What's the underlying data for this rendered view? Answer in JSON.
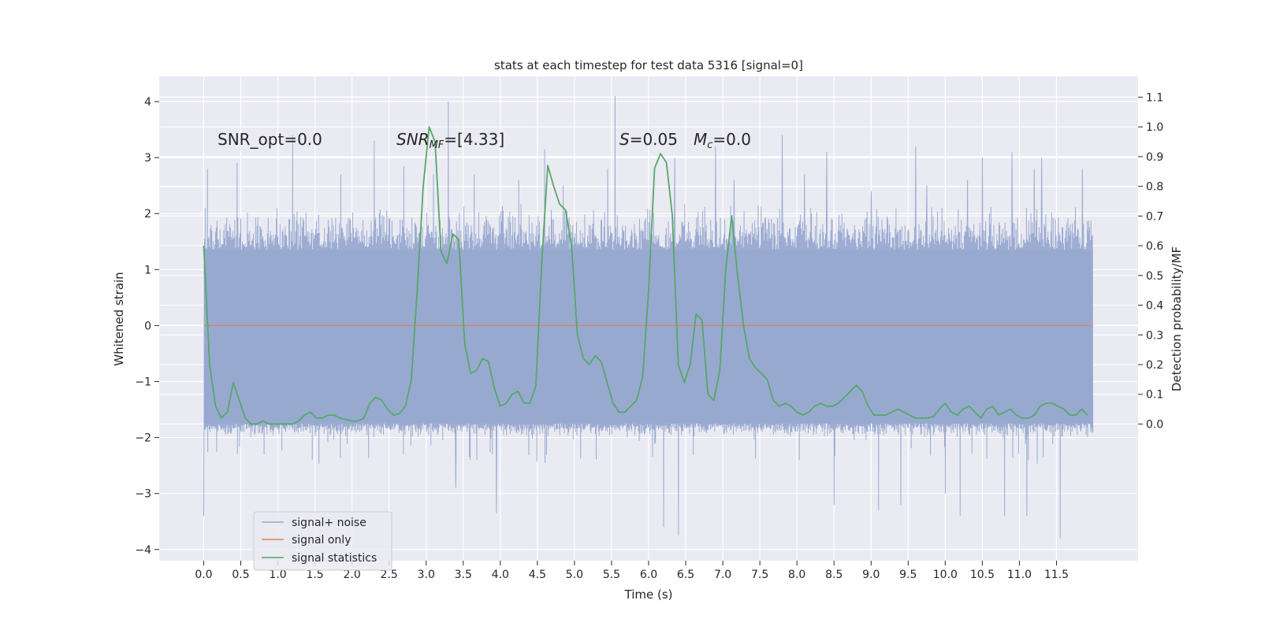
{
  "chart_data": {
    "type": "line",
    "title": "stats at each timestep for test data 5316 [signal=0]",
    "xlabel": "Time (s)",
    "ylabel": "Whitened strain",
    "y2label": "Detection probability/MF",
    "xlim": [
      -0.6,
      12.6
    ],
    "ylim": [
      -4.2,
      4.45
    ],
    "y2lim": [
      -0.46,
      1.17
    ],
    "x_ticks": [
      0.0,
      0.5,
      1.0,
      1.5,
      2.0,
      2.5,
      3.0,
      3.5,
      4.0,
      4.5,
      5.0,
      5.5,
      6.0,
      6.5,
      7.0,
      7.5,
      8.0,
      8.5,
      9.0,
      9.5,
      10.0,
      10.5,
      11.0,
      11.5
    ],
    "x_tick_labels": [
      "0.0",
      "0.5",
      "1.0",
      "1.5",
      "2.0",
      "2.5",
      "3.0",
      "3.5",
      "4.0",
      "4.5",
      "5.0",
      "5.5",
      "6.0",
      "6.5",
      "7.0",
      "7.5",
      "8.0",
      "8.5",
      "9.0",
      "9.5",
      "10.0",
      "10.5",
      "11.0",
      "11.5"
    ],
    "y_ticks": [
      4,
      3,
      2,
      1,
      0,
      -1,
      -2,
      -3,
      -4
    ],
    "y_tick_labels": [
      "4",
      "3",
      "2",
      "1",
      "0",
      "−1",
      "−2",
      "−3",
      "−4"
    ],
    "y2_ticks": [
      1.1,
      1.0,
      0.9,
      0.8,
      0.7,
      0.6,
      0.5,
      0.4,
      0.3,
      0.2,
      0.1,
      0.0
    ],
    "y2_tick_labels": [
      "1.1",
      "1.0",
      "0.9",
      "0.8",
      "0.7",
      "0.6",
      "0.5",
      "0.4",
      "0.3",
      "0.2",
      "0.1",
      "0.0"
    ],
    "grid": true,
    "legend_position": "lower-left",
    "annotations": {
      "snr_opt": "SNR_opt=0.0",
      "snr_mf_base": "SNR",
      "snr_mf_sub": "MF",
      "snr_mf_val": "=[4.33]",
      "s_base": "S",
      "s_val": "=0.05",
      "mc_base": "M",
      "mc_sub": "c",
      "mc_val": "=0.0"
    },
    "series": [
      {
        "name": "signal+ noise",
        "color": "#98a9d0",
        "axis": "left",
        "x_range": [
          0.0,
          11.99
        ],
        "band_core": [
          -1.75,
          1.35
        ],
        "typical_peak_range": [
          -2.0,
          2.2
        ],
        "notable_peaks": [
          [
            0.0,
            -3.4
          ],
          [
            0.05,
            2.8
          ],
          [
            0.45,
            2.9
          ],
          [
            1.2,
            3.4
          ],
          [
            1.85,
            2.7
          ],
          [
            2.3,
            3.3
          ],
          [
            2.7,
            2.85
          ],
          [
            3.1,
            2.7
          ],
          [
            3.3,
            4.0
          ],
          [
            3.4,
            -2.9
          ],
          [
            3.65,
            2.7
          ],
          [
            3.95,
            -3.35
          ],
          [
            4.25,
            2.6
          ],
          [
            4.6,
            3.15
          ],
          [
            4.85,
            2.5
          ],
          [
            5.45,
            2.8
          ],
          [
            5.55,
            4.1
          ],
          [
            6.2,
            -3.6
          ],
          [
            6.35,
            3.0
          ],
          [
            6.4,
            -3.75
          ],
          [
            6.9,
            3.2
          ],
          [
            7.15,
            2.6
          ],
          [
            7.8,
            3.4
          ],
          [
            8.1,
            2.7
          ],
          [
            8.4,
            3.1
          ],
          [
            8.5,
            -3.2
          ],
          [
            9.0,
            2.4
          ],
          [
            9.1,
            -3.3
          ],
          [
            9.4,
            -3.2
          ],
          [
            9.6,
            3.2
          ],
          [
            9.75,
            2.5
          ],
          [
            10.0,
            -3.0
          ],
          [
            10.2,
            -3.4
          ],
          [
            10.3,
            2.6
          ],
          [
            10.5,
            3.0
          ],
          [
            10.8,
            -3.4
          ],
          [
            10.9,
            3.1
          ],
          [
            11.1,
            -3.4
          ],
          [
            11.2,
            2.8
          ],
          [
            11.3,
            3.0
          ],
          [
            11.55,
            -3.8
          ],
          [
            11.85,
            2.8
          ]
        ]
      },
      {
        "name": "signal only",
        "color": "#dd8452",
        "axis": "left",
        "x": [
          0.0,
          11.99
        ],
        "y": [
          0.0,
          0.0
        ]
      },
      {
        "name": "signal statistics",
        "color": "#55a868",
        "axis": "right",
        "x": [
          0.0,
          0.08,
          0.16,
          0.24,
          0.32,
          0.4,
          0.48,
          0.56,
          0.64,
          0.72,
          0.8,
          0.88,
          0.96,
          1.04,
          1.12,
          1.2,
          1.28,
          1.36,
          1.44,
          1.52,
          1.6,
          1.68,
          1.76,
          1.84,
          1.92,
          2.0,
          2.08,
          2.16,
          2.24,
          2.32,
          2.4,
          2.48,
          2.56,
          2.64,
          2.72,
          2.8,
          2.88,
          2.96,
          3.04,
          3.12,
          3.2,
          3.28,
          3.36,
          3.44,
          3.52,
          3.6,
          3.68,
          3.76,
          3.84,
          3.92,
          4.0,
          4.08,
          4.16,
          4.24,
          4.32,
          4.4,
          4.48,
          4.56,
          4.64,
          4.72,
          4.8,
          4.88,
          4.96,
          5.04,
          5.12,
          5.2,
          5.28,
          5.36,
          5.44,
          5.52,
          5.6,
          5.68,
          5.76,
          5.84,
          5.92,
          6.0,
          6.08,
          6.16,
          6.24,
          6.32,
          6.4,
          6.48,
          6.56,
          6.64,
          6.72,
          6.8,
          6.88,
          6.96,
          7.04,
          7.12,
          7.2,
          7.28,
          7.36,
          7.44,
          7.52,
          7.6,
          7.68,
          7.76,
          7.84,
          7.92,
          8.0,
          8.08,
          8.16,
          8.24,
          8.32,
          8.4,
          8.48,
          8.56,
          8.64,
          8.72,
          8.8,
          8.88,
          8.96,
          9.04,
          9.12,
          9.2,
          9.28,
          9.36,
          9.44,
          9.52,
          9.6,
          9.68,
          9.76,
          9.84,
          9.92,
          10.0,
          10.08,
          10.16,
          10.24,
          10.32,
          10.4,
          10.48,
          10.56,
          10.64,
          10.72,
          10.8,
          10.88,
          10.96,
          11.04,
          11.12,
          11.2,
          11.28,
          11.36,
          11.44,
          11.52,
          11.6,
          11.68,
          11.76,
          11.84,
          11.92
        ],
        "y": [
          0.6,
          0.2,
          0.06,
          0.02,
          0.04,
          0.14,
          0.08,
          0.02,
          0.0,
          0.0,
          0.01,
          0.0,
          0.0,
          0.0,
          0.0,
          0.0,
          0.01,
          0.03,
          0.04,
          0.02,
          0.02,
          0.03,
          0.03,
          0.02,
          0.015,
          0.01,
          0.01,
          0.02,
          0.07,
          0.09,
          0.08,
          0.05,
          0.03,
          0.035,
          0.06,
          0.15,
          0.45,
          0.8,
          1.0,
          0.95,
          0.58,
          0.54,
          0.64,
          0.62,
          0.27,
          0.17,
          0.18,
          0.22,
          0.21,
          0.12,
          0.06,
          0.07,
          0.1,
          0.11,
          0.07,
          0.07,
          0.13,
          0.55,
          0.87,
          0.8,
          0.74,
          0.72,
          0.6,
          0.3,
          0.22,
          0.2,
          0.23,
          0.21,
          0.14,
          0.07,
          0.04,
          0.04,
          0.06,
          0.08,
          0.16,
          0.45,
          0.86,
          0.91,
          0.88,
          0.7,
          0.2,
          0.14,
          0.2,
          0.37,
          0.35,
          0.1,
          0.08,
          0.18,
          0.52,
          0.7,
          0.5,
          0.33,
          0.22,
          0.19,
          0.17,
          0.15,
          0.08,
          0.06,
          0.07,
          0.06,
          0.04,
          0.03,
          0.04,
          0.06,
          0.07,
          0.06,
          0.06,
          0.07,
          0.09,
          0.11,
          0.13,
          0.11,
          0.06,
          0.03,
          0.03,
          0.03,
          0.04,
          0.05,
          0.04,
          0.03,
          0.02,
          0.02,
          0.02,
          0.025,
          0.05,
          0.07,
          0.04,
          0.03,
          0.05,
          0.06,
          0.04,
          0.02,
          0.05,
          0.06,
          0.03,
          0.04,
          0.05,
          0.03,
          0.02,
          0.02,
          0.03,
          0.06,
          0.07,
          0.07,
          0.06,
          0.05,
          0.03,
          0.03,
          0.05,
          0.03
        ]
      }
    ]
  }
}
